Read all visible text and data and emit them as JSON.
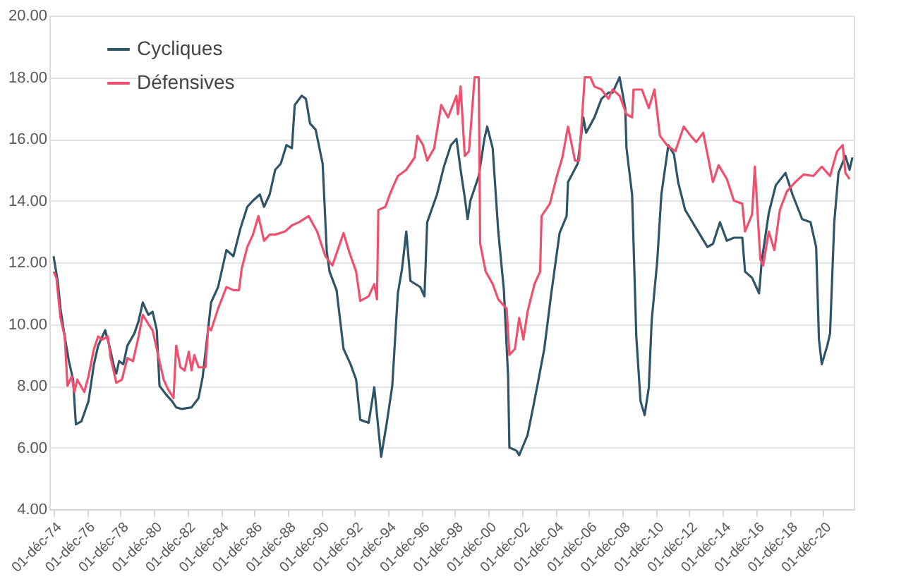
{
  "chart_data": {
    "type": "line",
    "xlim": [
      "1974-09-01",
      "2022-10-01"
    ],
    "xticks": [
      {
        "value": "1974-12-01",
        "label": "01-déc-74"
      },
      {
        "value": "1976-12-01",
        "label": "01-déc-76"
      },
      {
        "value": "1978-12-01",
        "label": "01-déc-78"
      },
      {
        "value": "1980-12-01",
        "label": "01-déc-80"
      },
      {
        "value": "1982-12-01",
        "label": "01-déc-82"
      },
      {
        "value": "1984-12-01",
        "label": "01-déc-84"
      },
      {
        "value": "1986-12-01",
        "label": "01-déc-86"
      },
      {
        "value": "1988-12-01",
        "label": "01-déc-88"
      },
      {
        "value": "1990-12-01",
        "label": "01-déc-90"
      },
      {
        "value": "1992-12-01",
        "label": "01-déc-92"
      },
      {
        "value": "1994-12-01",
        "label": "01-déc-94"
      },
      {
        "value": "1996-12-01",
        "label": "01-déc-96"
      },
      {
        "value": "1998-12-01",
        "label": "01-déc-98"
      },
      {
        "value": "2000-12-01",
        "label": "01-déc-00"
      },
      {
        "value": "2002-12-01",
        "label": "01-déc-02"
      },
      {
        "value": "2004-12-01",
        "label": "01-déc-04"
      },
      {
        "value": "2006-12-01",
        "label": "01-déc-06"
      },
      {
        "value": "2008-12-01",
        "label": "01-déc-08"
      },
      {
        "value": "2010-12-01",
        "label": "01-déc-10"
      },
      {
        "value": "2012-12-01",
        "label": "01-déc-12"
      },
      {
        "value": "2014-12-01",
        "label": "01-déc-14"
      },
      {
        "value": "2016-12-01",
        "label": "01-déc-16"
      },
      {
        "value": "2018-12-01",
        "label": "01-déc-18"
      },
      {
        "value": "2020-12-01",
        "label": "01-déc-20"
      }
    ],
    "ylim": [
      4,
      20
    ],
    "yticks": [
      {
        "value": 4,
        "label": "4.00"
      },
      {
        "value": 6,
        "label": "6.00"
      },
      {
        "value": 8,
        "label": "8.00"
      },
      {
        "value": 10,
        "label": "10.00"
      },
      {
        "value": 12,
        "label": "12.00"
      },
      {
        "value": 14,
        "label": "14.00"
      },
      {
        "value": 16,
        "label": "16.00"
      },
      {
        "value": 18,
        "label": "18.00"
      },
      {
        "value": 20,
        "label": "20.00"
      }
    ],
    "grid": "y",
    "legend": "top left",
    "marker": "none",
    "line_style": "solid",
    "series": [
      {
        "name": "Cycliques",
        "color": "#2e5468",
        "x": [
          "1974-12",
          "1975-03",
          "1975-05",
          "1975-08",
          "1975-11",
          "1976-02",
          "1976-04",
          "1976-08",
          "1977-01",
          "1977-05",
          "1977-08",
          "1978-01",
          "1978-04",
          "1978-08",
          "1978-09",
          "1978-11",
          "1979-02",
          "1979-05",
          "1979-10",
          "1980-01",
          "1980-04",
          "1980-08",
          "1980-11",
          "1981-02",
          "1981-04",
          "1981-09",
          "1982-01",
          "1982-04",
          "1982-08",
          "1983-03",
          "1983-08",
          "1983-11",
          "1984-02",
          "1984-05",
          "1984-10",
          "1985-04",
          "1985-09",
          "1986-02",
          "1986-07",
          "1986-11",
          "1987-04",
          "1987-07",
          "1987-11",
          "1988-03",
          "1988-07",
          "1988-11",
          "1989-03",
          "1989-05",
          "1989-10",
          "1990-01",
          "1990-04",
          "1990-08",
          "1991-01",
          "1991-04",
          "1991-06",
          "1991-11",
          "1992-04",
          "1992-09",
          "1993-01",
          "1993-04",
          "1993-10",
          "1994-02",
          "1994-07",
          "1994-11",
          "1995-03",
          "1995-07",
          "1995-10",
          "1996-01",
          "1996-04",
          "1996-11",
          "1997-02",
          "1997-04",
          "1997-11",
          "1998-04",
          "1998-09",
          "1999-01",
          "1999-04",
          "1999-07",
          "1999-09",
          "1999-11",
          "2000-05",
          "2000-09",
          "2000-11",
          "2001-03",
          "2001-07",
          "2001-11",
          "2002-02",
          "2002-03",
          "2002-08",
          "2002-10",
          "2003-04",
          "2003-08",
          "2003-11",
          "2004-04",
          "2004-09",
          "2005-03",
          "2005-08",
          "2005-09",
          "2006-04",
          "2006-08",
          "2006-10",
          "2007-04",
          "2007-09",
          "2008-02",
          "2008-05",
          "2008-10",
          "2009-02",
          "2009-03",
          "2009-07",
          "2009-10",
          "2010-01",
          "2010-04",
          "2010-07",
          "2010-09",
          "2011-01",
          "2011-04",
          "2011-09",
          "2012-01",
          "2012-04",
          "2012-09",
          "2013-01",
          "2013-05",
          "2014-01",
          "2014-05",
          "2014-10",
          "2015-03",
          "2015-08",
          "2016-02",
          "2016-04",
          "2016-09",
          "2017-02",
          "2017-04",
          "2017-09",
          "2018-02",
          "2018-09",
          "2019-02",
          "2019-09",
          "2020-03",
          "2020-07",
          "2020-09",
          "2020-11",
          "2021-03",
          "2021-05",
          "2021-08",
          "2021-11",
          "2022-04",
          "2022-07",
          "2022-09"
        ],
        "values": [
          12.2,
          11.4,
          10.5,
          9.6,
          8.8,
          8.2,
          6.75,
          6.85,
          7.5,
          8.7,
          9.3,
          9.8,
          9.3,
          8.5,
          8.4,
          8.8,
          8.7,
          9.3,
          9.7,
          10.1,
          10.7,
          10.3,
          10.4,
          9.8,
          8.0,
          7.7,
          7.5,
          7.3,
          7.25,
          7.3,
          7.6,
          8.3,
          9.5,
          10.7,
          11.2,
          12.4,
          12.2,
          13.1,
          13.8,
          14.0,
          14.2,
          13.8,
          14.2,
          15.0,
          15.2,
          15.8,
          15.7,
          17.1,
          17.4,
          17.3,
          16.5,
          16.3,
          15.2,
          12.35,
          11.7,
          11.1,
          9.2,
          8.7,
          8.2,
          6.9,
          6.8,
          7.95,
          5.7,
          6.8,
          8.0,
          11.0,
          11.8,
          13.0,
          11.4,
          11.2,
          10.9,
          13.3,
          14.2,
          15.1,
          15.8,
          16.0,
          15.0,
          14.1,
          13.4,
          14.0,
          14.8,
          16.0,
          16.4,
          15.7,
          13.0,
          11.1,
          8.3,
          6.0,
          5.9,
          5.75,
          6.4,
          7.3,
          8.0,
          9.2,
          11.0,
          12.95,
          13.5,
          14.6,
          15.2,
          16.7,
          16.2,
          16.7,
          17.3,
          17.5,
          17.5,
          18.0,
          17.0,
          15.7,
          14.2,
          9.6,
          7.5,
          7.05,
          7.95,
          10.1,
          12.05,
          14.2,
          15.8,
          15.5,
          14.6,
          13.7,
          13.4,
          13.1,
          12.5,
          12.6,
          13.3,
          12.7,
          12.8,
          12.8,
          11.7,
          11.5,
          11.0,
          12.05,
          13.6,
          14.5,
          14.9,
          14.2,
          13.4,
          13.3,
          12.5,
          9.5,
          8.7,
          9.3,
          9.7,
          13.3,
          14.9,
          15.45,
          15.0,
          15.4
        ]
      },
      {
        "name": "Défensives",
        "color": "#f0506e",
        "x": [
          "1974-12",
          "1975-02",
          "1975-05",
          "1975-08",
          "1975-10",
          "1976-01",
          "1976-03",
          "1976-05",
          "1976-10",
          "1977-01",
          "1977-05",
          "1977-08",
          "1977-11",
          "1978-03",
          "1978-05",
          "1978-09",
          "1979-01",
          "1979-05",
          "1979-09",
          "1980-01",
          "1980-04",
          "1980-08",
          "1980-11",
          "1981-03",
          "1981-07",
          "1981-10",
          "1982-02",
          "1982-04",
          "1982-07",
          "1982-10",
          "1983-01",
          "1983-03",
          "1983-05",
          "1983-08",
          "1984-01",
          "1984-03",
          "1984-05",
          "1984-10",
          "1985-04",
          "1985-09",
          "1986-01",
          "1986-03",
          "1986-07",
          "1986-11",
          "1987-03",
          "1987-07",
          "1987-11",
          "1988-03",
          "1988-10",
          "1989-03",
          "1989-08",
          "1990-03",
          "1990-09",
          "1991-03",
          "1991-08",
          "1992-04",
          "1992-08",
          "1993-01",
          "1993-04",
          "1993-10",
          "1994-02",
          "1994-04",
          "1994-05",
          "1994-10",
          "1995-02",
          "1995-07",
          "1996-01",
          "1996-07",
          "1996-09",
          "1997-01",
          "1997-04",
          "1997-09",
          "1998-02",
          "1998-07",
          "1999-01",
          "1999-02",
          "1999-04",
          "1999-07",
          "1999-10",
          "2000-02",
          "2000-05",
          "2000-06",
          "2000-10",
          "2001-03",
          "2001-07",
          "2002-01",
          "2002-03",
          "2002-07",
          "2002-10",
          "2003-01",
          "2003-04",
          "2003-09",
          "2004-01",
          "2004-02",
          "2004-08",
          "2005-01",
          "2005-05",
          "2005-09",
          "2006-02",
          "2006-05",
          "2006-09",
          "2007-01",
          "2007-04",
          "2007-09",
          "2008-02",
          "2008-05",
          "2008-10",
          "2009-03",
          "2009-07",
          "2009-08",
          "2010-02",
          "2010-07",
          "2010-11",
          "2011-03",
          "2011-08",
          "2012-02",
          "2012-08",
          "2013-01",
          "2013-05",
          "2013-10",
          "2014-05",
          "2014-09",
          "2015-03",
          "2015-08",
          "2016-02",
          "2016-04",
          "2016-09",
          "2016-11",
          "2017-03",
          "2017-05",
          "2017-09",
          "2018-01",
          "2018-05",
          "2018-10",
          "2019-04",
          "2019-10",
          "2020-05",
          "2020-11",
          "2021-05",
          "2021-10",
          "2022-02",
          "2022-04",
          "2022-07"
        ],
        "values": [
          11.7,
          11.5,
          10.2,
          9.6,
          8.0,
          8.3,
          7.8,
          8.2,
          7.8,
          8.3,
          9.2,
          9.6,
          9.5,
          9.6,
          8.9,
          8.1,
          8.2,
          8.9,
          8.8,
          9.6,
          10.3,
          10.0,
          9.8,
          9.0,
          8.2,
          7.9,
          7.6,
          9.3,
          8.6,
          8.5,
          9.1,
          8.5,
          9.0,
          8.6,
          8.6,
          9.9,
          9.8,
          10.5,
          11.2,
          11.1,
          11.1,
          11.8,
          12.5,
          12.9,
          13.5,
          12.7,
          12.9,
          12.9,
          13.0,
          13.2,
          13.3,
          13.5,
          13.0,
          12.2,
          11.9,
          12.95,
          12.35,
          11.7,
          10.75,
          10.9,
          11.3,
          10.8,
          13.7,
          13.8,
          14.3,
          14.8,
          15.0,
          15.4,
          16.1,
          15.8,
          15.3,
          15.7,
          17.1,
          16.7,
          17.4,
          16.8,
          17.7,
          15.45,
          15.6,
          18.0,
          18.0,
          12.6,
          11.7,
          11.3,
          10.8,
          10.5,
          9.0,
          9.2,
          10.2,
          9.5,
          10.4,
          11.3,
          11.7,
          13.5,
          13.9,
          14.8,
          15.4,
          16.4,
          15.3,
          15.3,
          18.0,
          18.0,
          17.7,
          17.6,
          17.3,
          17.6,
          17.4,
          16.8,
          16.7,
          17.6,
          17.6,
          17.0,
          17.6,
          16.1,
          15.8,
          15.6,
          16.4,
          16.1,
          15.9,
          16.2,
          14.6,
          15.15,
          14.7,
          14.0,
          13.9,
          13.0,
          13.55,
          15.1,
          12.1,
          11.9,
          13.0,
          12.4,
          13.7,
          14.3,
          14.6,
          14.85,
          14.8,
          15.1,
          14.8,
          15.6,
          15.8,
          14.9,
          14.7
        ]
      }
    ]
  }
}
